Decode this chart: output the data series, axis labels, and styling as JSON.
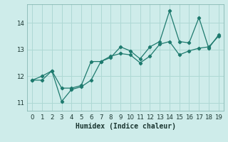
{
  "xlabel": "Humidex (Indice chaleur)",
  "background_color": "#ceecea",
  "grid_color": "#aed8d4",
  "line_color": "#1e7a6e",
  "x": [
    0,
    1,
    2,
    3,
    4,
    5,
    6,
    7,
    8,
    9,
    10,
    11,
    12,
    13,
    14,
    15,
    16,
    17,
    18,
    19
  ],
  "line1_y": [
    11.85,
    11.85,
    12.2,
    11.05,
    11.5,
    11.6,
    11.85,
    12.55,
    12.75,
    12.85,
    12.8,
    12.5,
    12.75,
    13.2,
    13.3,
    12.8,
    12.95,
    13.05,
    13.1,
    13.5
  ],
  "line2_y": [
    11.85,
    12.0,
    12.2,
    11.55,
    11.55,
    11.65,
    12.55,
    12.55,
    12.7,
    13.1,
    12.95,
    12.65,
    13.1,
    13.3,
    14.45,
    13.3,
    13.25,
    14.2,
    13.05,
    13.55
  ],
  "ylim": [
    10.7,
    14.7
  ],
  "xlim": [
    -0.5,
    19.5
  ],
  "yticks": [
    11,
    12,
    13,
    14
  ],
  "xticks": [
    0,
    1,
    2,
    3,
    4,
    5,
    6,
    7,
    8,
    9,
    10,
    11,
    12,
    13,
    14,
    15,
    16,
    17,
    18,
    19
  ]
}
